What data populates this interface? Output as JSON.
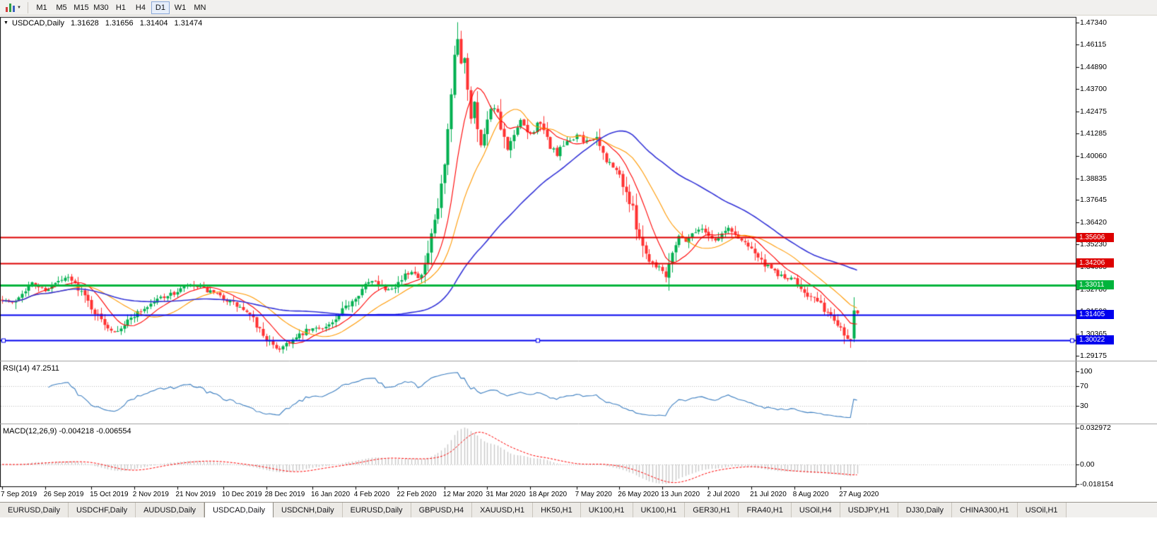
{
  "toolbar": {
    "timeframes": [
      {
        "label": "M1",
        "active": false
      },
      {
        "label": "M5",
        "active": false
      },
      {
        "label": "M15",
        "active": false
      },
      {
        "label": "M30",
        "active": false
      },
      {
        "label": "H1",
        "active": false
      },
      {
        "label": "H4",
        "active": false
      },
      {
        "label": "D1",
        "active": true
      },
      {
        "label": "W1",
        "active": false
      },
      {
        "label": "MN",
        "active": false
      }
    ]
  },
  "chart": {
    "symbol": "USDCAD,Daily",
    "ohlc": {
      "open": "1.31628",
      "high": "1.31656",
      "low": "1.31404",
      "close": "1.31474"
    },
    "price_scale_ticks": [
      "1.47340",
      "1.46115",
      "1.44890",
      "1.43700",
      "1.42475",
      "1.41285",
      "1.40060",
      "1.38835",
      "1.37645",
      "1.36420",
      "1.35230",
      "1.34005",
      "1.32780",
      "1.31590",
      "1.30365",
      "1.29175"
    ],
    "level_lines": [
      {
        "value": 1.35606,
        "label": "1.35606",
        "color": "#dd0000",
        "width": 2,
        "selected": false
      },
      {
        "value": 1.34206,
        "label": "1.34206",
        "color": "#dd0000",
        "width": 2,
        "selected": false
      },
      {
        "value": 1.33011,
        "label": "1.33011",
        "color": "#00b43c",
        "width": 3,
        "selected": false
      },
      {
        "value": 1.31405,
        "label": "1.31405",
        "color": "#0000ee",
        "width": 2,
        "selected": false
      },
      {
        "value": 1.30022,
        "label": "1.30022",
        "color": "#0000ee",
        "width": 2,
        "selected": true
      }
    ],
    "date_axis": [
      {
        "label": "7 Sep 2019",
        "index": 0
      },
      {
        "label": "26 Sep 2019",
        "index": 13
      },
      {
        "label": "15 Oct 2019",
        "index": 27
      },
      {
        "label": "2 Nov 2019",
        "index": 40
      },
      {
        "label": "21 Nov 2019",
        "index": 53
      },
      {
        "label": "10 Dec 2019",
        "index": 67
      },
      {
        "label": "28 Dec 2019",
        "index": 80
      },
      {
        "label": "16 Jan 2020",
        "index": 94
      },
      {
        "label": "4 Feb 2020",
        "index": 107
      },
      {
        "label": "22 Feb 2020",
        "index": 120
      },
      {
        "label": "12 Mar 2020",
        "index": 134
      },
      {
        "label": "31 Mar 2020",
        "index": 147
      },
      {
        "label": "18 Apr 2020",
        "index": 160
      },
      {
        "label": "7 May 2020",
        "index": 174
      },
      {
        "label": "26 May 2020",
        "index": 187
      },
      {
        "label": "13 Jun 2020",
        "index": 200
      },
      {
        "label": "2 Jul 2020",
        "index": 214
      },
      {
        "label": "21 Jul 2020",
        "index": 227
      },
      {
        "label": "8 Aug 2020",
        "index": 240
      },
      {
        "label": "27 Aug 2020",
        "index": 254
      }
    ],
    "rsi": {
      "label": "RSI(14) 47.2511",
      "scale_ticks": [
        "100",
        "70",
        "30"
      ],
      "levels": [
        70,
        30
      ]
    },
    "macd": {
      "label": "MACD(12,26,9) -0.004218 -0.006554",
      "scale_ticks": [
        "0.032972",
        "0.00",
        "-0.018154"
      ]
    }
  },
  "chart_data": {
    "type": "candlestick",
    "symbol": "USDCAD",
    "timeframe": "Daily",
    "candle_count": 260,
    "price_range_visible": {
      "top": 1.4763,
      "bottom": 1.2889
    },
    "current_bar": {
      "open": 1.31628,
      "high": 1.31656,
      "low": 1.31404,
      "close": 1.31474
    },
    "close_anchors": [
      [
        0,
        1.3225
      ],
      [
        3,
        1.32
      ],
      [
        6,
        1.3265
      ],
      [
        9,
        1.331
      ],
      [
        13,
        1.3275
      ],
      [
        17,
        1.332
      ],
      [
        20,
        1.334
      ],
      [
        23,
        1.329
      ],
      [
        26,
        1.321
      ],
      [
        29,
        1.313
      ],
      [
        32,
        1.3075
      ],
      [
        34,
        1.305
      ],
      [
        37,
        1.3085
      ],
      [
        40,
        1.314
      ],
      [
        44,
        1.3185
      ],
      [
        48,
        1.3235
      ],
      [
        52,
        1.3255
      ],
      [
        56,
        1.33
      ],
      [
        60,
        1.3285
      ],
      [
        64,
        1.3255
      ],
      [
        67,
        1.323
      ],
      [
        70,
        1.32
      ],
      [
        73,
        1.3165
      ],
      [
        76,
        1.311
      ],
      [
        79,
        1.303
      ],
      [
        82,
        1.2965
      ],
      [
        84,
        1.2955
      ],
      [
        86,
        1.2985
      ],
      [
        89,
        1.301
      ],
      [
        92,
        1.305
      ],
      [
        95,
        1.3065
      ],
      [
        98,
        1.3075
      ],
      [
        101,
        1.3105
      ],
      [
        104,
        1.318
      ],
      [
        107,
        1.324
      ],
      [
        110,
        1.33
      ],
      [
        113,
        1.333
      ],
      [
        116,
        1.328
      ],
      [
        119,
        1.33
      ],
      [
        122,
        1.335
      ],
      [
        124,
        1.338
      ],
      [
        126,
        1.335
      ],
      [
        128,
        1.34
      ],
      [
        130,
        1.355
      ],
      [
        132,
        1.372
      ],
      [
        134,
        1.395
      ],
      [
        135,
        1.412
      ],
      [
        136,
        1.432
      ],
      [
        137,
        1.452
      ],
      [
        138,
        1.464
      ],
      [
        139,
        1.45
      ],
      [
        140,
        1.456
      ],
      [
        141,
        1.438
      ],
      [
        142,
        1.422
      ],
      [
        143,
        1.432
      ],
      [
        144,
        1.415
      ],
      [
        145,
        1.406
      ],
      [
        147,
        1.423
      ],
      [
        149,
        1.428
      ],
      [
        151,
        1.415
      ],
      [
        153,
        1.403
      ],
      [
        155,
        1.411
      ],
      [
        157,
        1.419
      ],
      [
        160,
        1.412
      ],
      [
        162,
        1.419
      ],
      [
        164,
        1.413
      ],
      [
        166,
        1.406
      ],
      [
        168,
        1.401
      ],
      [
        170,
        1.406
      ],
      [
        172,
        1.409
      ],
      [
        174,
        1.412
      ],
      [
        176,
        1.408
      ],
      [
        178,
        1.41
      ],
      [
        180,
        1.409
      ],
      [
        182,
        1.401
      ],
      [
        184,
        1.396
      ],
      [
        187,
        1.39
      ],
      [
        189,
        1.381
      ],
      [
        191,
        1.37
      ],
      [
        193,
        1.358
      ],
      [
        195,
        1.347
      ],
      [
        197,
        1.342
      ],
      [
        199,
        1.34
      ],
      [
        201,
        1.336
      ],
      [
        203,
        1.35
      ],
      [
        205,
        1.357
      ],
      [
        207,
        1.3545
      ],
      [
        209,
        1.358
      ],
      [
        211,
        1.361
      ],
      [
        214,
        1.358
      ],
      [
        216,
        1.3545
      ],
      [
        218,
        1.358
      ],
      [
        220,
        1.361
      ],
      [
        222,
        1.3575
      ],
      [
        224,
        1.3545
      ],
      [
        227,
        1.351
      ],
      [
        229,
        1.345
      ],
      [
        231,
        1.341
      ],
      [
        233,
        1.3385
      ],
      [
        235,
        1.336
      ],
      [
        237,
        1.334
      ],
      [
        240,
        1.333
      ],
      [
        242,
        1.329
      ],
      [
        244,
        1.325
      ],
      [
        246,
        1.3225
      ],
      [
        248,
        1.319
      ],
      [
        250,
        1.315
      ],
      [
        252,
        1.311
      ],
      [
        254,
        1.3075
      ],
      [
        255,
        1.304
      ],
      [
        256,
        1.301
      ],
      [
        257,
        1.3
      ],
      [
        259,
        1.3147
      ]
    ],
    "last_candles": [
      {
        "open": 1.30102,
        "high": 1.32351,
        "low": 1.29902,
        "close": 1.31628
      },
      {
        "open": 1.31628,
        "high": 1.31656,
        "low": 1.31404,
        "close": 1.31474
      }
    ],
    "extremes": {
      "highest": {
        "index": 138,
        "price": 1.4734
      },
      "lowest": {
        "index": 84,
        "price": 1.2949
      }
    },
    "moving_averages": [
      {
        "period": 10,
        "color": "#ff0000"
      },
      {
        "period": 21,
        "color": "#ff9900"
      },
      {
        "period": 55,
        "color": "#3535d8"
      }
    ],
    "indicators": {
      "rsi": {
        "period": 14,
        "current": 47.2511,
        "color": "#3d7fc1"
      },
      "macd": {
        "fast": 12,
        "slow": 26,
        "signal": 9,
        "current_main": -0.004218,
        "current_signal": -0.006554,
        "histogram_color": "#c8c8c8",
        "signal_color": "#ff0000"
      }
    },
    "colors": {
      "up": "#00b050",
      "down": "#ff3232"
    }
  },
  "tabs": [
    {
      "label": "EURUSD,Daily",
      "active": false
    },
    {
      "label": "USDCHF,Daily",
      "active": false
    },
    {
      "label": "AUDUSD,Daily",
      "active": false
    },
    {
      "label": "USDCAD,Daily",
      "active": true
    },
    {
      "label": "USDCNH,Daily",
      "active": false
    },
    {
      "label": "EURUSD,Daily",
      "active": false
    },
    {
      "label": "GBPUSD,H4",
      "active": false
    },
    {
      "label": "XAUUSD,H1",
      "active": false
    },
    {
      "label": "HK50,H1",
      "active": false
    },
    {
      "label": "UK100,H1",
      "active": false
    },
    {
      "label": "UK100,H1",
      "active": false
    },
    {
      "label": "GER30,H1",
      "active": false
    },
    {
      "label": "FRA40,H1",
      "active": false
    },
    {
      "label": "USOil,H4",
      "active": false
    },
    {
      "label": "USDJPY,H1",
      "active": false
    },
    {
      "label": "DJ30,Daily",
      "active": false
    },
    {
      "label": "CHINA300,H1",
      "active": false
    },
    {
      "label": "USOil,H1",
      "active": false
    }
  ]
}
